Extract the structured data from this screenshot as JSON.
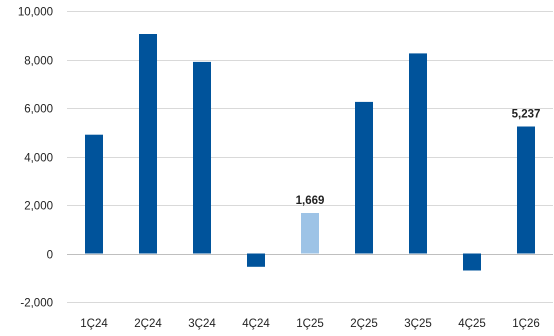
{
  "chart_data": {
    "type": "bar",
    "title": "",
    "xlabel": "",
    "ylabel": "",
    "categories": [
      "1Ç24",
      "2Ç24",
      "3Ç24",
      "4Ç24",
      "1Ç25",
      "2Ç25",
      "3Ç25",
      "4Ç25",
      "1Ç26"
    ],
    "values": [
      4900,
      9050,
      7900,
      -550,
      1669,
      6250,
      8250,
      -700,
      5237
    ],
    "bar_colors": [
      "#00539b",
      "#00539b",
      "#00539b",
      "#00539b",
      "#9dc3e6",
      "#00539b",
      "#00539b",
      "#00539b",
      "#00539b"
    ],
    "data_labels": [
      {
        "index": 4,
        "text": "1,669"
      },
      {
        "index": 8,
        "text": "5,237"
      }
    ],
    "ylim": [
      -2000,
      10000
    ],
    "yticks": [
      -2000,
      0,
      2000,
      4000,
      6000,
      8000,
      10000
    ],
    "ytick_labels": [
      "-2,000",
      "0",
      "2,000",
      "4,000",
      "6,000",
      "8,000",
      "10,000"
    ],
    "grid": true,
    "legend": "none"
  }
}
